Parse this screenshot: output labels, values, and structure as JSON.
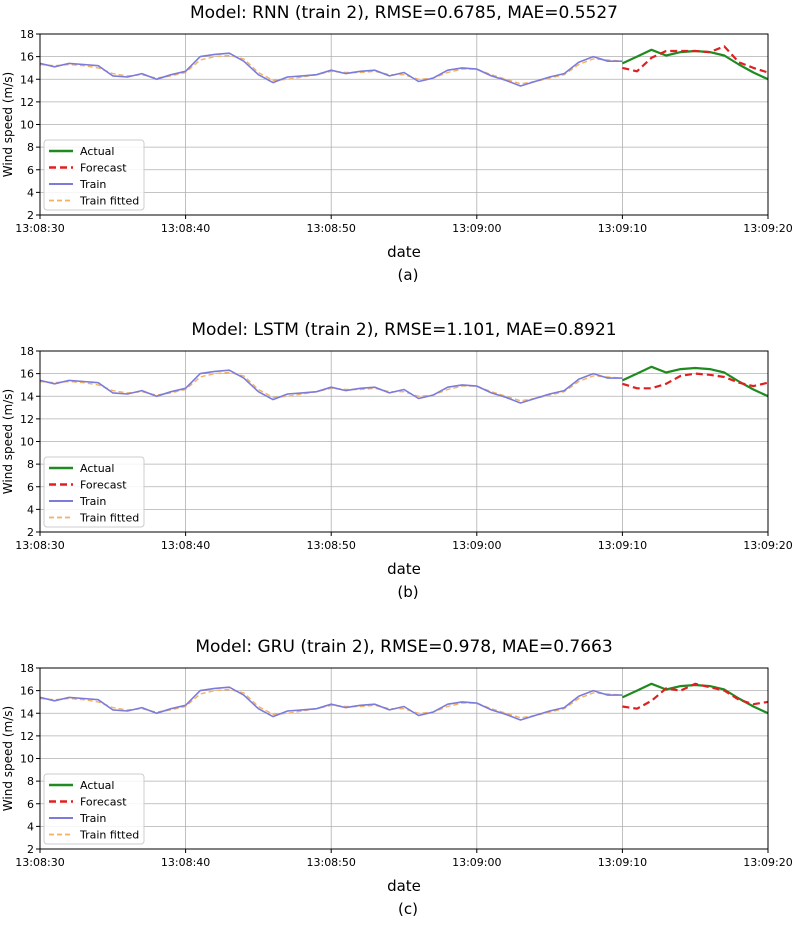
{
  "colors": {
    "actual": "#1f8a1f",
    "forecast": "#e02020",
    "train": "#7b7bdc",
    "train_fitted": "#f5b060",
    "grid": "#b0b0b0",
    "axes": "#000000"
  },
  "chart_data": [
    {
      "type": "line",
      "title": "Model: RNN (train 2), RMSE=0.6785, MAE=0.5527",
      "panel_label": "(a)",
      "xlabel": "date",
      "ylabel": "Wind speed (m/s)",
      "x_ticks": [
        "13:08:30",
        "13:08:40",
        "13:08:50",
        "13:09:00",
        "13:09:10",
        "13:09:20"
      ],
      "x_range_seconds": [
        0,
        50
      ],
      "ylim": [
        2,
        18
      ],
      "y_ticks": [
        2,
        4,
        6,
        8,
        10,
        12,
        14,
        16,
        18
      ],
      "grid": true,
      "legend_position": "lower-left",
      "series": [
        {
          "name": "Actual",
          "key": "actual",
          "x": [
            40,
            41,
            42,
            43,
            44,
            45,
            46,
            47,
            48,
            49,
            50
          ],
          "y": [
            15.4,
            16.0,
            16.6,
            16.1,
            16.4,
            16.5,
            16.4,
            16.1,
            15.3,
            14.6,
            14.0
          ]
        },
        {
          "name": "Forecast",
          "key": "forecast",
          "x": [
            40,
            41,
            42,
            43,
            44,
            45,
            46,
            47,
            48,
            49,
            50
          ],
          "y": [
            15.0,
            14.7,
            15.9,
            16.5,
            16.5,
            16.5,
            16.4,
            16.9,
            15.5,
            15.0,
            14.6
          ]
        },
        {
          "name": "Train",
          "key": "train",
          "x": [
            0,
            1,
            2,
            3,
            4,
            5,
            6,
            7,
            8,
            9,
            10,
            11,
            12,
            13,
            14,
            15,
            16,
            17,
            18,
            19,
            20,
            21,
            22,
            23,
            24,
            25,
            26,
            27,
            28,
            29,
            30,
            31,
            32,
            33,
            34,
            35,
            36,
            37,
            38,
            39,
            40
          ],
          "y": [
            15.4,
            15.1,
            15.4,
            15.3,
            15.2,
            14.3,
            14.2,
            14.5,
            14.0,
            14.4,
            14.7,
            16.0,
            16.2,
            16.3,
            15.6,
            14.4,
            13.7,
            14.2,
            14.3,
            14.4,
            14.8,
            14.5,
            14.7,
            14.8,
            14.3,
            14.6,
            13.8,
            14.1,
            14.8,
            15.0,
            14.9,
            14.3,
            13.9,
            13.4,
            13.8,
            14.2,
            14.5,
            15.5,
            16.0,
            15.6,
            15.6
          ]
        },
        {
          "name": "Train fitted",
          "key": "train_fitted",
          "x": [
            0,
            1,
            2,
            3,
            4,
            5,
            6,
            7,
            8,
            9,
            10,
            11,
            12,
            13,
            14,
            15,
            16,
            17,
            18,
            19,
            20,
            21,
            22,
            23,
            24,
            25,
            26,
            27,
            28,
            29,
            30,
            31,
            32,
            33,
            34,
            35,
            36,
            37,
            38,
            39,
            40
          ],
          "y": [
            15.3,
            15.2,
            15.3,
            15.2,
            15.0,
            14.5,
            14.3,
            14.4,
            14.1,
            14.3,
            14.6,
            15.7,
            16.0,
            16.1,
            15.8,
            14.6,
            13.9,
            14.0,
            14.2,
            14.4,
            14.7,
            14.6,
            14.6,
            14.7,
            14.4,
            14.4,
            14.0,
            14.1,
            14.6,
            14.9,
            14.9,
            14.4,
            14.0,
            13.6,
            13.8,
            14.1,
            14.4,
            15.3,
            15.8,
            15.7,
            15.6
          ]
        }
      ]
    },
    {
      "type": "line",
      "title": "Model: LSTM (train 2), RMSE=1.101, MAE=0.8921",
      "panel_label": "(b)",
      "xlabel": "date",
      "ylabel": "Wind speed (m/s)",
      "x_ticks": [
        "13:08:30",
        "13:08:40",
        "13:08:50",
        "13:09:00",
        "13:09:10",
        "13:09:20"
      ],
      "x_range_seconds": [
        0,
        50
      ],
      "ylim": [
        2,
        18
      ],
      "y_ticks": [
        2,
        4,
        6,
        8,
        10,
        12,
        14,
        16,
        18
      ],
      "grid": true,
      "legend_position": "lower-left",
      "series": [
        {
          "name": "Actual",
          "key": "actual",
          "x": [
            40,
            41,
            42,
            43,
            44,
            45,
            46,
            47,
            48,
            49,
            50
          ],
          "y": [
            15.4,
            16.0,
            16.6,
            16.1,
            16.4,
            16.5,
            16.4,
            16.1,
            15.3,
            14.6,
            14.0
          ]
        },
        {
          "name": "Forecast",
          "key": "forecast",
          "x": [
            40,
            41,
            42,
            43,
            44,
            45,
            46,
            47,
            48,
            49,
            50
          ],
          "y": [
            15.1,
            14.7,
            14.7,
            15.1,
            15.8,
            16.0,
            15.9,
            15.7,
            15.2,
            14.9,
            15.2
          ]
        },
        {
          "name": "Train",
          "key": "train",
          "x": [
            0,
            1,
            2,
            3,
            4,
            5,
            6,
            7,
            8,
            9,
            10,
            11,
            12,
            13,
            14,
            15,
            16,
            17,
            18,
            19,
            20,
            21,
            22,
            23,
            24,
            25,
            26,
            27,
            28,
            29,
            30,
            31,
            32,
            33,
            34,
            35,
            36,
            37,
            38,
            39,
            40
          ],
          "y": [
            15.4,
            15.1,
            15.4,
            15.3,
            15.2,
            14.3,
            14.2,
            14.5,
            14.0,
            14.4,
            14.7,
            16.0,
            16.2,
            16.3,
            15.6,
            14.4,
            13.7,
            14.2,
            14.3,
            14.4,
            14.8,
            14.5,
            14.7,
            14.8,
            14.3,
            14.6,
            13.8,
            14.1,
            14.8,
            15.0,
            14.9,
            14.3,
            13.9,
            13.4,
            13.8,
            14.2,
            14.5,
            15.5,
            16.0,
            15.6,
            15.6
          ]
        },
        {
          "name": "Train fitted",
          "key": "train_fitted",
          "x": [
            0,
            1,
            2,
            3,
            4,
            5,
            6,
            7,
            8,
            9,
            10,
            11,
            12,
            13,
            14,
            15,
            16,
            17,
            18,
            19,
            20,
            21,
            22,
            23,
            24,
            25,
            26,
            27,
            28,
            29,
            30,
            31,
            32,
            33,
            34,
            35,
            36,
            37,
            38,
            39,
            40
          ],
          "y": [
            15.3,
            15.2,
            15.3,
            15.2,
            15.0,
            14.5,
            14.3,
            14.4,
            14.1,
            14.3,
            14.6,
            15.7,
            16.0,
            16.1,
            15.8,
            14.6,
            13.9,
            14.0,
            14.2,
            14.4,
            14.7,
            14.6,
            14.6,
            14.7,
            14.4,
            14.4,
            14.0,
            14.1,
            14.6,
            14.9,
            14.9,
            14.4,
            14.0,
            13.6,
            13.8,
            14.1,
            14.4,
            15.3,
            15.8,
            15.7,
            15.6
          ]
        }
      ]
    },
    {
      "type": "line",
      "title": "Model: GRU (train 2), RMSE=0.978, MAE=0.7663",
      "panel_label": "(c)",
      "xlabel": "date",
      "ylabel": "Wind speed (m/s)",
      "x_ticks": [
        "13:08:30",
        "13:08:40",
        "13:08:50",
        "13:09:00",
        "13:09:10",
        "13:09:20"
      ],
      "x_range_seconds": [
        0,
        50
      ],
      "ylim": [
        2,
        18
      ],
      "y_ticks": [
        2,
        4,
        6,
        8,
        10,
        12,
        14,
        16,
        18
      ],
      "grid": true,
      "legend_position": "lower-left",
      "series": [
        {
          "name": "Actual",
          "key": "actual",
          "x": [
            40,
            41,
            42,
            43,
            44,
            45,
            46,
            47,
            48,
            49,
            50
          ],
          "y": [
            15.4,
            16.0,
            16.6,
            16.1,
            16.4,
            16.5,
            16.4,
            16.1,
            15.3,
            14.6,
            14.0
          ]
        },
        {
          "name": "Forecast",
          "key": "forecast",
          "x": [
            40,
            41,
            42,
            43,
            44,
            45,
            46,
            47,
            48,
            49,
            50
          ],
          "y": [
            14.6,
            14.4,
            15.1,
            16.2,
            16.0,
            16.6,
            16.3,
            16.0,
            15.2,
            14.8,
            15.0
          ]
        },
        {
          "name": "Train",
          "key": "train",
          "x": [
            0,
            1,
            2,
            3,
            4,
            5,
            6,
            7,
            8,
            9,
            10,
            11,
            12,
            13,
            14,
            15,
            16,
            17,
            18,
            19,
            20,
            21,
            22,
            23,
            24,
            25,
            26,
            27,
            28,
            29,
            30,
            31,
            32,
            33,
            34,
            35,
            36,
            37,
            38,
            39,
            40
          ],
          "y": [
            15.4,
            15.1,
            15.4,
            15.3,
            15.2,
            14.3,
            14.2,
            14.5,
            14.0,
            14.4,
            14.7,
            16.0,
            16.2,
            16.3,
            15.6,
            14.4,
            13.7,
            14.2,
            14.3,
            14.4,
            14.8,
            14.5,
            14.7,
            14.8,
            14.3,
            14.6,
            13.8,
            14.1,
            14.8,
            15.0,
            14.9,
            14.3,
            13.9,
            13.4,
            13.8,
            14.2,
            14.5,
            15.5,
            16.0,
            15.6,
            15.6
          ]
        },
        {
          "name": "Train fitted",
          "key": "train_fitted",
          "x": [
            0,
            1,
            2,
            3,
            4,
            5,
            6,
            7,
            8,
            9,
            10,
            11,
            12,
            13,
            14,
            15,
            16,
            17,
            18,
            19,
            20,
            21,
            22,
            23,
            24,
            25,
            26,
            27,
            28,
            29,
            30,
            31,
            32,
            33,
            34,
            35,
            36,
            37,
            38,
            39,
            40
          ],
          "y": [
            15.3,
            15.2,
            15.3,
            15.2,
            15.0,
            14.5,
            14.3,
            14.4,
            14.1,
            14.3,
            14.6,
            15.7,
            16.0,
            16.1,
            15.8,
            14.6,
            13.9,
            14.0,
            14.2,
            14.4,
            14.7,
            14.6,
            14.6,
            14.7,
            14.4,
            14.4,
            14.0,
            14.1,
            14.6,
            14.9,
            14.9,
            14.4,
            14.0,
            13.6,
            13.8,
            14.1,
            14.4,
            15.3,
            15.8,
            15.7,
            15.6
          ]
        }
      ]
    }
  ]
}
